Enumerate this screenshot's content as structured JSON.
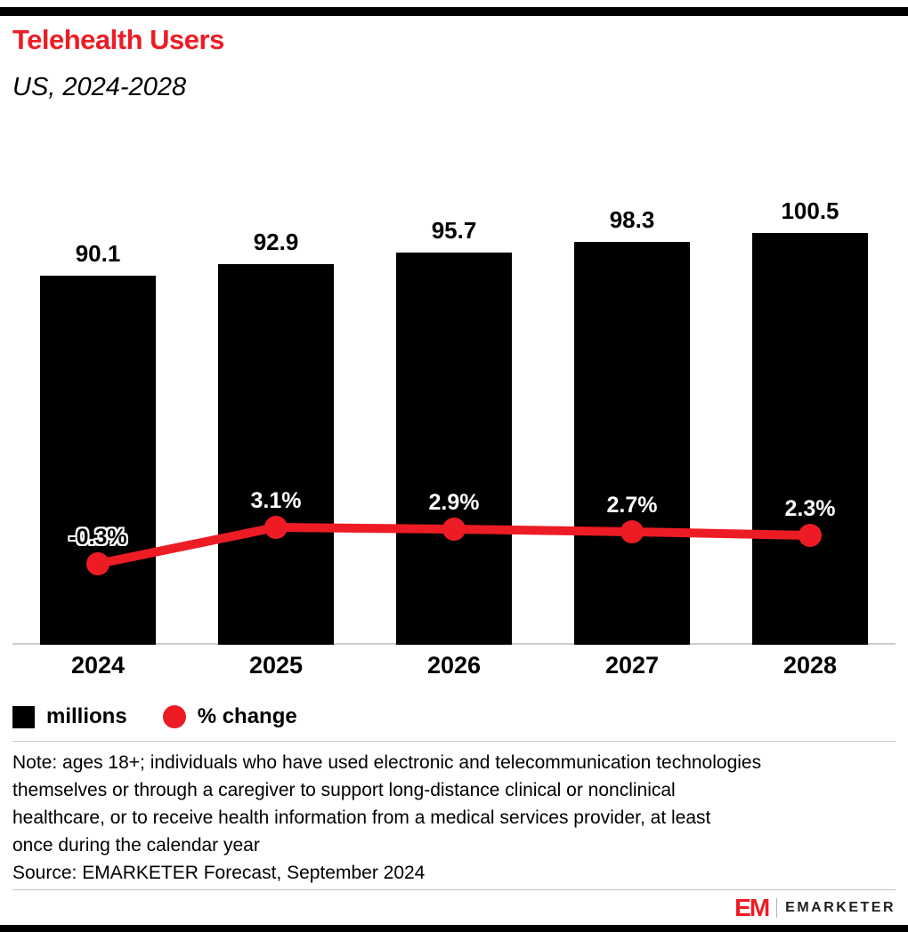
{
  "page": {
    "title": "Telehealth Users",
    "subtitle": "US, 2024-2028"
  },
  "chart_data": {
    "type": "bar",
    "subtype": "bar-line-combo",
    "title": "Telehealth Users",
    "subtitle": "US, 2024-2028",
    "categories": [
      "2024",
      "2025",
      "2026",
      "2027",
      "2028"
    ],
    "series": [
      {
        "name": "millions",
        "chart": "bar",
        "color": "#000000",
        "values": [
          90.1,
          92.9,
          95.7,
          98.3,
          100.5
        ],
        "value_labels": [
          "90.1",
          "92.9",
          "95.7",
          "98.3",
          "100.5"
        ]
      },
      {
        "name": "% change",
        "chart": "line",
        "color": "#ED1C24",
        "values": [
          -0.3,
          3.1,
          2.9,
          2.7,
          2.3
        ],
        "value_labels": [
          "-0.3%",
          "3.1%",
          "2.9%",
          "2.7%",
          "2.3%"
        ]
      }
    ],
    "ylim_bar": [
      0,
      100.5
    ],
    "grid": false,
    "legend_position": "bottom-left"
  },
  "legend": {
    "items": [
      {
        "label": "millions",
        "swatch": "square",
        "color": "#000000"
      },
      {
        "label": "% change",
        "swatch": "circle",
        "color": "#ED1C24"
      }
    ]
  },
  "note_lines": [
    "Note: ages 18+; individuals who have used electronic and telecommunication technologies",
    "themselves or through a caregiver to support long-distance clinical or nonclinical",
    "healthcare, or to receive health information from a medical services provider, at least",
    "once during the calendar year"
  ],
  "source": "Source: EMARKETER Forecast, September 2024",
  "footer": {
    "logo": "EM",
    "brand": "EMARKETER"
  },
  "colors": {
    "accent_red": "#ED1C24",
    "bar_black": "#000000"
  }
}
